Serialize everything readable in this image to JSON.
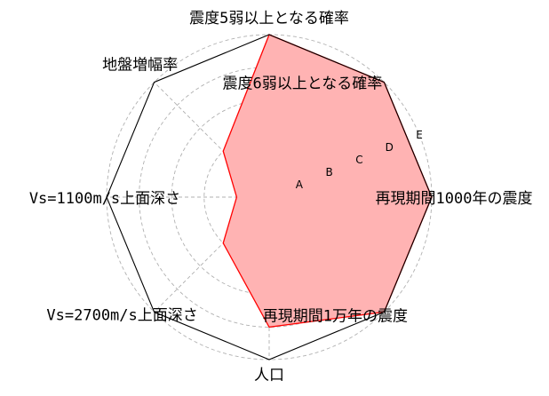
{
  "chart_data": {
    "type": "radar",
    "axes": [
      "震度5弱以上となる確率",
      "震度6弱以上となる確率",
      "再現期間1000年の震度",
      "再現期間1万年の震度",
      "人口",
      "Vs=2700m/s上面深さ",
      "Vs=1100m/s上面深さ",
      "地盤増幅率"
    ],
    "ring_labels": [
      "A",
      "B",
      "C",
      "D",
      "E"
    ],
    "rmax": 5,
    "values": [
      5,
      5,
      5,
      5,
      4,
      2,
      1,
      2
    ],
    "grid": true,
    "colors": {
      "fill": "#ffb3b3",
      "line": "#ff0000",
      "outline": "#000000",
      "grid": "#b0b0b0"
    }
  }
}
